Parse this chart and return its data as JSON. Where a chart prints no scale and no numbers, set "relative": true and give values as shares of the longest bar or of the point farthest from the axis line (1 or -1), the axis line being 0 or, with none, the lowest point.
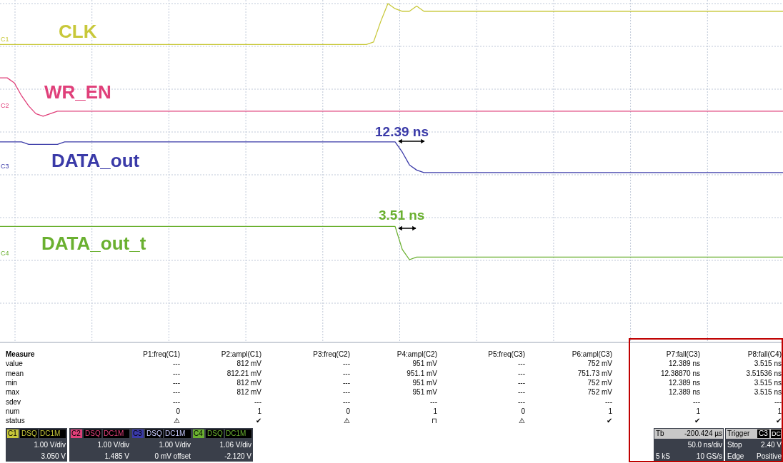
{
  "chart_data": {
    "type": "line",
    "relative": true,
    "grid": true,
    "legend": false,
    "marker": "none",
    "line_style": "solid",
    "categories": [
      null,
      null,
      null,
      null,
      null,
      null,
      null,
      null,
      null,
      null,
      null,
      null,
      null,
      null,
      null,
      null,
      null,
      null,
      null,
      null,
      null,
      null,
      null,
      null,
      null,
      null,
      null,
      null,
      null,
      null,
      null,
      null,
      null,
      null,
      null,
      null,
      null,
      null,
      null,
      null,
      null,
      null,
      null,
      null,
      null,
      null,
      null,
      null,
      null,
      null,
      null,
      null,
      null,
      null,
      null,
      null,
      null,
      null,
      null,
      null,
      null,
      null,
      null,
      null,
      null,
      null,
      null,
      null,
      null,
      null,
      null,
      null,
      null,
      null,
      null,
      null,
      null,
      null,
      null,
      null,
      null,
      null,
      null,
      null,
      null,
      null,
      null,
      null,
      null,
      null,
      null,
      null,
      null,
      null,
      null,
      null,
      null,
      null,
      null,
      null,
      null,
      null,
      null,
      null,
      null,
      null,
      null,
      null,
      null,
      null
    ],
    "series": [
      {
        "name": "CLK",
        "color": "#c8c83a",
        "values": [
          0.84,
          0.84,
          0.84,
          0.84,
          0.84,
          0.84,
          0.84,
          0.84,
          0.84,
          0.84,
          0.84,
          0.84,
          0.84,
          0.84,
          0.84,
          0.84,
          0.84,
          0.84,
          0.84,
          0.84,
          0.84,
          0.84,
          0.84,
          0.84,
          0.84,
          0.84,
          0.84,
          0.84,
          0.84,
          0.84,
          0.84,
          0.84,
          0.84,
          0.84,
          0.84,
          0.84,
          0.84,
          0.84,
          0.84,
          0.84,
          0.84,
          0.84,
          0.84,
          0.84,
          0.84,
          0.84,
          0.84,
          0.84,
          0.84,
          0.84,
          0.84,
          0.84,
          0.85,
          0.93,
          1.0,
          0.98,
          0.97,
          0.97,
          0.99,
          0.97,
          0.97,
          0.97,
          0.97,
          0.97,
          0.97,
          0.97,
          0.97,
          0.97,
          0.97,
          0.97,
          0.97,
          0.97,
          0.97,
          0.97,
          0.97,
          0.97,
          0.97,
          0.97,
          0.97,
          0.97,
          0.97,
          0.97,
          0.97,
          0.97,
          0.97,
          0.97,
          0.97,
          0.97,
          0.97,
          0.97,
          0.97,
          0.97,
          0.97,
          0.97,
          0.97,
          0.97,
          0.97,
          0.97,
          0.97,
          0.97,
          0.97,
          0.97,
          0.97,
          0.97,
          0.97,
          0.97,
          0.97,
          0.97,
          0.97,
          0.97
        ]
      },
      {
        "name": "WR_EN",
        "color": "#e0407a",
        "values": [
          0.71,
          0.71,
          0.69,
          0.64,
          0.6,
          0.57,
          0.56,
          0.57,
          0.58,
          0.58,
          0.58,
          0.58,
          0.58,
          0.58,
          0.58,
          0.58,
          0.58,
          0.58,
          0.58,
          0.58,
          0.58,
          0.58,
          0.58,
          0.58,
          0.58,
          0.58,
          0.58,
          0.58,
          0.58,
          0.58,
          0.58,
          0.58,
          0.58,
          0.58,
          0.58,
          0.58,
          0.58,
          0.58,
          0.58,
          0.58,
          0.58,
          0.58,
          0.58,
          0.58,
          0.58,
          0.58,
          0.58,
          0.58,
          0.58,
          0.58,
          0.58,
          0.58,
          0.58,
          0.58,
          0.58,
          0.58,
          0.58,
          0.58,
          0.58,
          0.58,
          0.58,
          0.58,
          0.58,
          0.58,
          0.58,
          0.58,
          0.58,
          0.58,
          0.58,
          0.58,
          0.58,
          0.58,
          0.58,
          0.58,
          0.58,
          0.58,
          0.58,
          0.58,
          0.58,
          0.58,
          0.58,
          0.58,
          0.58,
          0.58,
          0.58,
          0.58,
          0.58,
          0.58,
          0.58,
          0.58,
          0.58,
          0.58,
          0.58,
          0.58,
          0.58,
          0.58,
          0.58,
          0.58,
          0.58,
          0.58,
          0.58,
          0.58,
          0.58,
          0.58,
          0.58,
          0.58,
          0.58,
          0.58,
          0.58,
          0.58
        ]
      },
      {
        "name": "DATA_out",
        "color": "#3a3aa8",
        "values": [
          0.46,
          0.46,
          0.46,
          0.46,
          0.45,
          0.45,
          0.45,
          0.45,
          0.45,
          0.46,
          0.46,
          0.46,
          0.46,
          0.46,
          0.46,
          0.46,
          0.46,
          0.46,
          0.46,
          0.46,
          0.46,
          0.46,
          0.46,
          0.46,
          0.46,
          0.46,
          0.46,
          0.46,
          0.46,
          0.46,
          0.46,
          0.46,
          0.46,
          0.46,
          0.46,
          0.46,
          0.46,
          0.46,
          0.46,
          0.46,
          0.46,
          0.46,
          0.46,
          0.46,
          0.46,
          0.46,
          0.46,
          0.46,
          0.46,
          0.46,
          0.46,
          0.46,
          0.46,
          0.46,
          0.46,
          0.46,
          0.42,
          0.37,
          0.35,
          0.34,
          0.34,
          0.34,
          0.34,
          0.34,
          0.34,
          0.34,
          0.34,
          0.34,
          0.34,
          0.34,
          0.34,
          0.34,
          0.34,
          0.34,
          0.34,
          0.34,
          0.34,
          0.34,
          0.34,
          0.34,
          0.34,
          0.34,
          0.34,
          0.34,
          0.34,
          0.34,
          0.34,
          0.34,
          0.34,
          0.34,
          0.34,
          0.34,
          0.34,
          0.34,
          0.34,
          0.34,
          0.34,
          0.34,
          0.34,
          0.34,
          0.34,
          0.34,
          0.34,
          0.34,
          0.34,
          0.34,
          0.34,
          0.34,
          0.34,
          0.34
        ]
      },
      {
        "name": "DATA_out_t",
        "color": "#6ab030",
        "values": [
          0.13,
          0.13,
          0.13,
          0.13,
          0.13,
          0.13,
          0.13,
          0.13,
          0.13,
          0.13,
          0.13,
          0.13,
          0.13,
          0.13,
          0.13,
          0.13,
          0.13,
          0.13,
          0.13,
          0.13,
          0.13,
          0.13,
          0.13,
          0.13,
          0.13,
          0.13,
          0.13,
          0.13,
          0.13,
          0.13,
          0.13,
          0.13,
          0.13,
          0.13,
          0.13,
          0.13,
          0.13,
          0.13,
          0.13,
          0.13,
          0.13,
          0.13,
          0.13,
          0.13,
          0.13,
          0.13,
          0.13,
          0.13,
          0.13,
          0.13,
          0.13,
          0.13,
          0.13,
          0.13,
          0.13,
          0.13,
          0.04,
          0.0,
          0.01,
          0.01,
          0.01,
          0.01,
          0.01,
          0.01,
          0.01,
          0.01,
          0.01,
          0.01,
          0.01,
          0.01,
          0.01,
          0.01,
          0.01,
          0.01,
          0.01,
          0.01,
          0.01,
          0.01,
          0.01,
          0.01,
          0.01,
          0.01,
          0.01,
          0.01,
          0.01,
          0.01,
          0.01,
          0.01,
          0.01,
          0.01,
          0.01,
          0.01,
          0.01,
          0.01,
          0.01,
          0.01,
          0.01,
          0.01,
          0.01,
          0.01,
          0.01,
          0.01,
          0.01,
          0.01,
          0.01,
          0.01,
          0.01,
          0.01,
          0.01,
          0.01
        ]
      }
    ],
    "annotations": [
      "12.39 ns",
      "3.51 ns",
      "C1",
      "C2",
      "C3",
      "C4",
      "Measure",
      "P1:freq(C1)",
      "P2:ampl(C1)",
      "P3:freq(C2)",
      "P4:ampl(C2)",
      "P5:freq(C3)",
      "P6:ampl(C3)",
      "P7:fall(C3)",
      "P8:fall(C4)",
      "value",
      "---",
      "812 mV",
      "---",
      "951 mV",
      "---",
      "752 mV",
      "12.389 ns",
      "3.515 ns",
      "mean",
      "---",
      "812.21 mV",
      "---",
      "951.1 mV",
      "---",
      "751.73 mV",
      "12.38870 ns",
      "3.51536 ns",
      "min",
      "---",
      "812 mV",
      "---",
      "951 mV",
      "---",
      "752 mV",
      "12.389 ns",
      "3.515 ns",
      "max",
      "---",
      "812 mV",
      "---",
      "951 mV",
      "---",
      "752 mV",
      "12.389 ns",
      "3.515 ns",
      "sdev",
      "---",
      "---",
      "---",
      "---",
      "---",
      "---",
      "---",
      "---",
      "num",
      "0",
      "1",
      "0",
      "1",
      "0",
      "1",
      "1",
      "1",
      "status",
      "⚠",
      "✔",
      "⚠",
      "⊓",
      "⚠",
      "✔",
      "✔",
      "✔",
      "C1",
      "DSQ",
      "DC1M",
      "1.00 V/div",
      "3.050 V",
      "C2",
      "DSQ",
      "DC1M",
      "1.00 V/div",
      "1.485 V",
      "C3",
      "DSQ",
      "DC1M",
      "1.00 V/div",
      "0 mV offset",
      "C4",
      "DSQ",
      "DC1M",
      "1.06 V/div",
      "-2.120 V",
      "Tb",
      "-200.424 µs",
      "50.0 ns/div",
      "5 kS",
      "10 GS/s",
      "Trigger",
      "C3",
      "DC",
      "Stop",
      "2.40 V",
      "Edge",
      "Positive"
    ]
  }
}
